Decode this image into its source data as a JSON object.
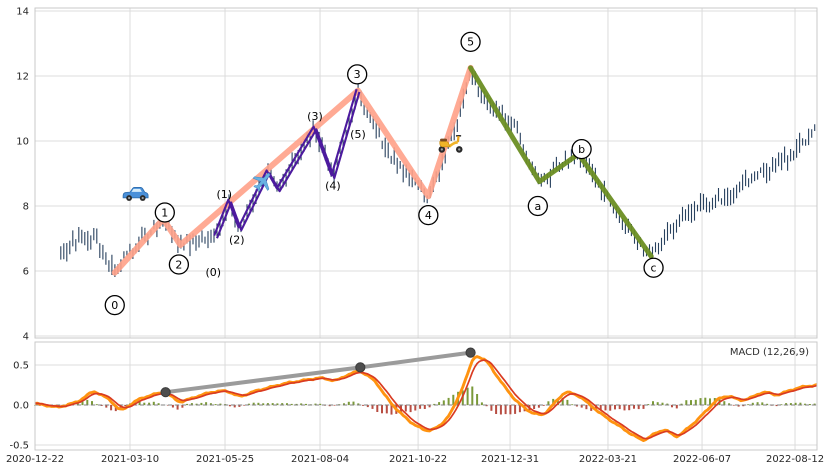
{
  "figure": {
    "background": "#ffffff",
    "grid_color": "#dcdcdc",
    "border_color": "#c9c9c9",
    "tick_color": "#262626"
  },
  "x_axis": {
    "labels": [
      "2020-12-22",
      "2021-03-10",
      "2021-05-25",
      "2021-08-04",
      "2021-10-22",
      "2021-12-31",
      "2022-03-21",
      "2022-06-07",
      "2022-08-12"
    ],
    "fracs": [
      0.0,
      0.1215,
      0.243,
      0.3645,
      0.4899,
      0.6075,
      0.7327,
      0.853,
      0.9719
    ]
  },
  "price_panel": {
    "y_tick_labels": [
      "14",
      "12",
      "10",
      "8",
      "6",
      "4"
    ],
    "y_tick_values": [
      14,
      12,
      10,
      8,
      6,
      4
    ],
    "bar_color": "#28415e"
  },
  "macd_panel": {
    "label": "MACD (12,26,9)",
    "y_tick_labels": [
      "0.5",
      "0.0",
      "-0.5"
    ],
    "y_tick_values": [
      0.5,
      0.0,
      -0.5
    ],
    "macd_color": "#d93b22",
    "signal_color": "#ff9310",
    "hist_pos_color": "#6b8e23",
    "hist_neg_color": "#b03a2e",
    "divergence_color": "#9b9b9b",
    "divergence_dot_color": "#4d4d4d"
  },
  "chart_data": [
    {
      "type": "bar",
      "title": "Price with Elliott Wave annotations",
      "ylabel": "",
      "ylim": [
        3.9,
        14.1
      ],
      "y_ticks": [
        4,
        6,
        8,
        10,
        12,
        14
      ],
      "x_labels": [
        "2020-12-22",
        "2021-03-10",
        "2021-05-25",
        "2021-08-04",
        "2021-10-22",
        "2021-12-31",
        "2022-03-21",
        "2022-06-07",
        "2022-08-12"
      ],
      "price_keypoints": [
        [
          0.033,
          6.55
        ],
        [
          0.05,
          6.9
        ],
        [
          0.075,
          7.05
        ],
        [
          0.09,
          6.4
        ],
        [
          0.102,
          5.95
        ],
        [
          0.12,
          6.6
        ],
        [
          0.14,
          7.1
        ],
        [
          0.164,
          7.6
        ],
        [
          0.186,
          6.8
        ],
        [
          0.21,
          7.0
        ],
        [
          0.231,
          7.05
        ],
        [
          0.249,
          8.15
        ],
        [
          0.262,
          7.3
        ],
        [
          0.298,
          9.05
        ],
        [
          0.311,
          8.5
        ],
        [
          0.358,
          10.4
        ],
        [
          0.381,
          8.9
        ],
        [
          0.413,
          11.55
        ],
        [
          0.432,
          10.5
        ],
        [
          0.455,
          9.5
        ],
        [
          0.478,
          8.9
        ],
        [
          0.503,
          8.3
        ],
        [
          0.52,
          9.2
        ],
        [
          0.54,
          10.6
        ],
        [
          0.557,
          12.25
        ],
        [
          0.572,
          11.2
        ],
        [
          0.59,
          10.9
        ],
        [
          0.612,
          10.5
        ],
        [
          0.63,
          9.4
        ],
        [
          0.645,
          8.75
        ],
        [
          0.662,
          9.05
        ],
        [
          0.678,
          9.3
        ],
        [
          0.695,
          9.6
        ],
        [
          0.712,
          9.0
        ],
        [
          0.733,
          8.2
        ],
        [
          0.755,
          7.3
        ],
        [
          0.775,
          6.7
        ],
        [
          0.788,
          6.45
        ],
        [
          0.805,
          7.0
        ],
        [
          0.825,
          7.5
        ],
        [
          0.845,
          8.0
        ],
        [
          0.862,
          8.05
        ],
        [
          0.878,
          8.2
        ],
        [
          0.895,
          8.5
        ],
        [
          0.912,
          8.8
        ],
        [
          0.93,
          9.0
        ],
        [
          0.947,
          9.3
        ],
        [
          0.963,
          9.5
        ],
        [
          0.98,
          9.9
        ],
        [
          0.997,
          10.35
        ]
      ],
      "impulse_wave": {
        "name": "primary-impulse",
        "color": "#ffa188",
        "points": [
          {
            "x": 0.102,
            "y": 5.95,
            "label": "0",
            "label_x": 0.102,
            "label_y": 4.95
          },
          {
            "x": 0.164,
            "y": 7.6,
            "label": "1",
            "label_x": 0.166,
            "label_y": 7.8
          },
          {
            "x": 0.186,
            "y": 6.8,
            "label": "2",
            "label_x": 0.184,
            "label_y": 6.2
          },
          {
            "x": 0.413,
            "y": 11.55,
            "label": "3",
            "label_x": 0.412,
            "label_y": 12.05
          },
          {
            "x": 0.503,
            "y": 8.3,
            "label": "4",
            "label_x": 0.503,
            "label_y": 7.72
          },
          {
            "x": 0.557,
            "y": 12.25,
            "label": "5",
            "label_x": 0.557,
            "label_y": 13.05
          }
        ]
      },
      "sub_wave": {
        "name": "minor-impulse",
        "color": "#4c1a9e",
        "vertices": [
          [
            0.231,
            7.05
          ],
          [
            0.249,
            8.15
          ],
          [
            0.262,
            7.3
          ],
          [
            0.298,
            9.05
          ],
          [
            0.311,
            8.5
          ],
          [
            0.358,
            10.4
          ],
          [
            0.381,
            8.9
          ],
          [
            0.413,
            11.55
          ]
        ],
        "labels": [
          {
            "text": "(0)",
            "x": 0.228,
            "y": 5.95
          },
          {
            "text": "(1)",
            "x": 0.242,
            "y": 8.35
          },
          {
            "text": "(2)",
            "x": 0.258,
            "y": 6.95
          },
          {
            "text": "(3)",
            "x": 0.358,
            "y": 10.75
          },
          {
            "text": "(4)",
            "x": 0.381,
            "y": 8.62
          },
          {
            "text": "(5)",
            "x": 0.413,
            "y": 10.2
          }
        ]
      },
      "correction_wave": {
        "name": "corrective-abc",
        "color": "#6b8e23",
        "points": [
          {
            "x": 0.557,
            "y": 12.25,
            "label": null
          },
          {
            "x": 0.645,
            "y": 8.75,
            "label": "a",
            "label_x": 0.643,
            "label_y": 8.0
          },
          {
            "x": 0.695,
            "y": 9.6,
            "label": "b",
            "label_x": 0.699,
            "label_y": 9.75
          },
          {
            "x": 0.788,
            "y": 6.45,
            "label": "c",
            "label_x": 0.791,
            "label_y": 6.1
          }
        ]
      },
      "markers": [
        {
          "icon": "car",
          "x": 0.128,
          "y": 8.35
        },
        {
          "icon": "airplane",
          "x": 0.292,
          "y": 8.75
        },
        {
          "icon": "scooter",
          "x": 0.531,
          "y": 9.95
        }
      ]
    },
    {
      "type": "line",
      "title": "MACD (12,26,9)",
      "ylim": [
        -0.5625,
        0.7875
      ],
      "y_ticks": [
        -0.5,
        0.0,
        0.5
      ],
      "macd_keypoints": [
        [
          0,
          0.02
        ],
        [
          0.03,
          -0.03
        ],
        [
          0.055,
          0.04
        ],
        [
          0.075,
          0.18
        ],
        [
          0.095,
          0.07
        ],
        [
          0.11,
          -0.08
        ],
        [
          0.13,
          0.06
        ],
        [
          0.15,
          0.13
        ],
        [
          0.167,
          0.16
        ],
        [
          0.185,
          0.03
        ],
        [
          0.205,
          0.1
        ],
        [
          0.225,
          0.16
        ],
        [
          0.245,
          0.18
        ],
        [
          0.262,
          0.1
        ],
        [
          0.28,
          0.17
        ],
        [
          0.3,
          0.22
        ],
        [
          0.32,
          0.27
        ],
        [
          0.345,
          0.31
        ],
        [
          0.365,
          0.34
        ],
        [
          0.385,
          0.3
        ],
        [
          0.4,
          0.38
        ],
        [
          0.416,
          0.43
        ],
        [
          0.435,
          0.3
        ],
        [
          0.455,
          0.02
        ],
        [
          0.478,
          -0.2
        ],
        [
          0.5,
          -0.33
        ],
        [
          0.518,
          -0.27
        ],
        [
          0.535,
          -0.05
        ],
        [
          0.55,
          0.3
        ],
        [
          0.562,
          0.63
        ],
        [
          0.578,
          0.55
        ],
        [
          0.595,
          0.3
        ],
        [
          0.615,
          0.05
        ],
        [
          0.635,
          -0.1
        ],
        [
          0.65,
          -0.13
        ],
        [
          0.665,
          0.03
        ],
        [
          0.678,
          0.17
        ],
        [
          0.695,
          0.12
        ],
        [
          0.71,
          0.0
        ],
        [
          0.725,
          -0.12
        ],
        [
          0.745,
          -0.25
        ],
        [
          0.765,
          -0.38
        ],
        [
          0.778,
          -0.45
        ],
        [
          0.792,
          -0.36
        ],
        [
          0.806,
          -0.3
        ],
        [
          0.82,
          -0.41
        ],
        [
          0.84,
          -0.25
        ],
        [
          0.858,
          -0.08
        ],
        [
          0.872,
          0.07
        ],
        [
          0.888,
          0.12
        ],
        [
          0.902,
          0.05
        ],
        [
          0.918,
          0.1
        ],
        [
          0.932,
          0.17
        ],
        [
          0.948,
          0.12
        ],
        [
          0.962,
          0.17
        ],
        [
          0.978,
          0.22
        ],
        [
          1.0,
          0.25
        ]
      ],
      "divergence_line": {
        "points": [
          [
            0.167,
            0.16
          ],
          [
            0.416,
            0.47
          ],
          [
            0.557,
            0.655
          ]
        ]
      }
    }
  ]
}
